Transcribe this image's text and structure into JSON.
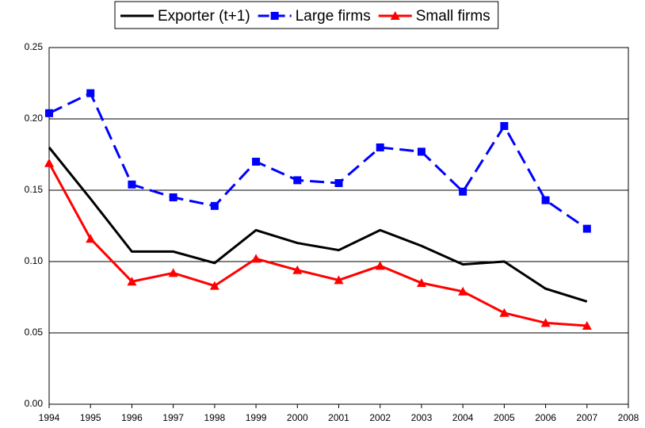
{
  "chart_data": {
    "type": "line",
    "x": [
      1994,
      1995,
      1996,
      1997,
      1998,
      1999,
      2000,
      2001,
      2002,
      2003,
      2004,
      2005,
      2006,
      2007
    ],
    "series": [
      {
        "name": "Exporter (t+1)",
        "color": "#000000",
        "line_style": "solid",
        "marker": "none",
        "values": [
          0.18,
          0.144,
          0.107,
          0.107,
          0.099,
          0.122,
          0.113,
          0.108,
          0.122,
          0.111,
          0.098,
          0.1,
          0.081,
          0.072
        ]
      },
      {
        "name": "Large firms",
        "color": "#0000ff",
        "line_style": "dashed",
        "marker": "square",
        "values": [
          0.204,
          0.218,
          0.154,
          0.145,
          0.139,
          0.17,
          0.157,
          0.155,
          0.18,
          0.177,
          0.149,
          0.195,
          0.143,
          0.123
        ]
      },
      {
        "name": "Small firms",
        "color": "#ff0000",
        "line_style": "solid",
        "marker": "triangle",
        "values": [
          0.169,
          0.116,
          0.086,
          0.092,
          0.083,
          0.102,
          0.094,
          0.087,
          0.097,
          0.085,
          0.079,
          0.064,
          0.057,
          0.055
        ]
      }
    ],
    "xlim": [
      1994,
      2008
    ],
    "xticks": [
      1994,
      1995,
      1996,
      1997,
      1998,
      1999,
      2000,
      2001,
      2002,
      2003,
      2004,
      2005,
      2006,
      2007,
      2008
    ],
    "ylim": [
      0,
      0.25
    ],
    "yticks": [
      {
        "value": 0,
        "label": "0.00"
      },
      {
        "value": 0.05,
        "label": "0.05"
      },
      {
        "value": 0.1,
        "label": "0.10"
      },
      {
        "value": 0.15,
        "label": "0.15"
      },
      {
        "value": 0.2,
        "label": "0.20"
      },
      {
        "value": 0.25,
        "label": "0.25"
      }
    ],
    "grid": true,
    "legend": "top"
  }
}
